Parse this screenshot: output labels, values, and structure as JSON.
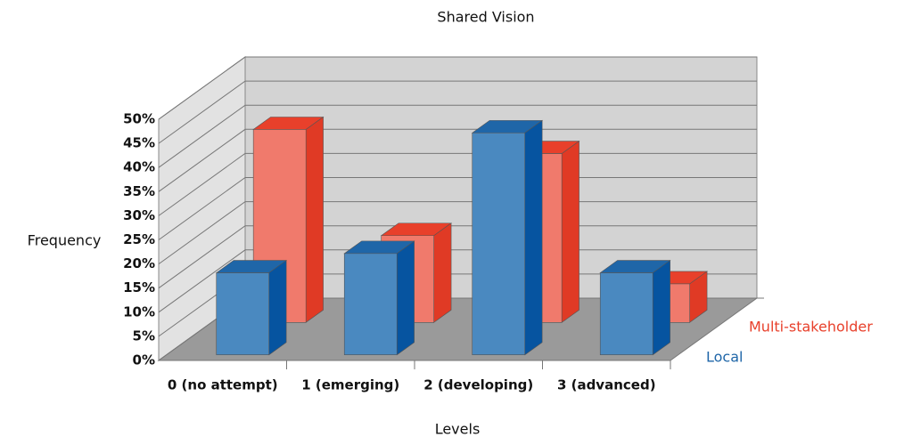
{
  "chart_data": {
    "type": "bar3d",
    "title": "Shared Vision",
    "x_label": "Levels",
    "y_label": "Frequency",
    "categories": [
      "0 (no attempt)",
      "1 (emerging)",
      "2 (developing)",
      "3 (advanced)"
    ],
    "series": [
      {
        "name": "Local",
        "color": "#4a89c0",
        "values": [
          17,
          21,
          46,
          17
        ]
      },
      {
        "name": "Multi-stakeholder",
        "color": "#f07a6c",
        "values": [
          40,
          18,
          35,
          8
        ]
      }
    ],
    "ylim": [
      0,
      50
    ],
    "yticks": [
      {
        "value": 0,
        "label": "0%"
      },
      {
        "value": 5,
        "label": "5%"
      },
      {
        "value": 10,
        "label": "10%"
      },
      {
        "value": 15,
        "label": "15%"
      },
      {
        "value": 20,
        "label": "20%"
      },
      {
        "value": 25,
        "label": "25%"
      },
      {
        "value": 30,
        "label": "30%"
      },
      {
        "value": 35,
        "label": "35%"
      },
      {
        "value": 40,
        "label": "40%"
      },
      {
        "value": 45,
        "label": "45%"
      },
      {
        "value": 50,
        "label": "50%"
      }
    ],
    "grid": true
  }
}
